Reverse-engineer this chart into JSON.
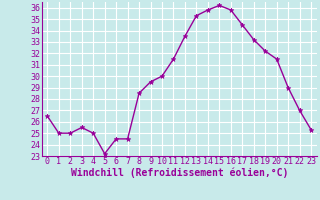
{
  "x": [
    0,
    1,
    2,
    3,
    4,
    5,
    6,
    7,
    8,
    9,
    10,
    11,
    12,
    13,
    14,
    15,
    16,
    17,
    18,
    19,
    20,
    21,
    22,
    23
  ],
  "y": [
    26.5,
    25.0,
    25.0,
    25.5,
    25.0,
    23.2,
    24.5,
    24.5,
    28.5,
    29.5,
    30.0,
    31.5,
    33.5,
    35.3,
    35.8,
    36.2,
    35.8,
    34.5,
    33.2,
    32.2,
    31.5,
    29.0,
    27.0,
    25.3
  ],
  "line_color": "#990099",
  "marker": "*",
  "marker_size": 3.5,
  "bg_color": "#c8eaea",
  "grid_color": "#ffffff",
  "xlabel": "Windchill (Refroidissement éolien,°C)",
  "xlim": [
    -0.5,
    23.5
  ],
  "ylim": [
    23,
    36.5
  ],
  "yticks": [
    23,
    24,
    25,
    26,
    27,
    28,
    29,
    30,
    31,
    32,
    33,
    34,
    35,
    36
  ],
  "xticks": [
    0,
    1,
    2,
    3,
    4,
    5,
    6,
    7,
    8,
    9,
    10,
    11,
    12,
    13,
    14,
    15,
    16,
    17,
    18,
    19,
    20,
    21,
    22,
    23
  ],
  "xlabel_fontsize": 7.0,
  "tick_fontsize": 6.0,
  "line_width": 1.0
}
